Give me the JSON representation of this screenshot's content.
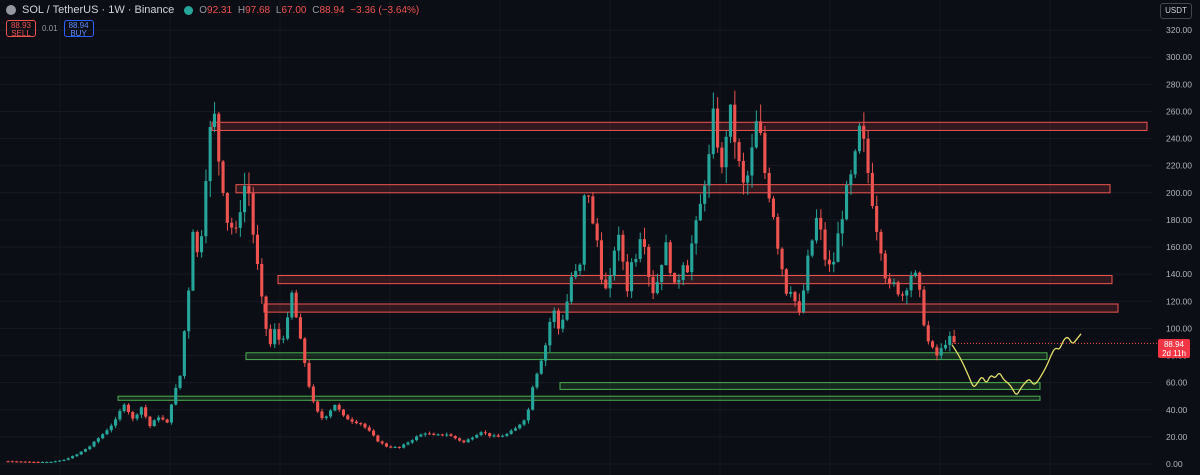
{
  "header": {
    "title": "SOL / TetherUS · 1W · Binance",
    "ohlc": [
      {
        "label": "O",
        "value": "92.31"
      },
      {
        "label": "H",
        "value": "97.68"
      },
      {
        "label": "L",
        "value": "67.00"
      },
      {
        "label": "C",
        "value": "88.94"
      },
      {
        "label": "",
        "value": "−3.36 (−3.64%)"
      }
    ]
  },
  "trade": {
    "sell_price": "88.93",
    "sell_label": "SELL",
    "spread": "0.01",
    "buy_price": "88.94",
    "buy_label": "BUY"
  },
  "currency": "USDT",
  "last_price": {
    "value": "88.94",
    "countdown": "2d 11h"
  },
  "colors": {
    "background": "#0c0e15",
    "up": "#26a69a",
    "down": "#ef5350",
    "resistance": "#ef5350",
    "support": "#4caf50",
    "projection": "#e6e06a"
  },
  "chart_data": {
    "type": "candlestick",
    "ylim": [
      0,
      330
    ],
    "y_ticks": [
      "0.00",
      "20.00",
      "40.00",
      "60.00",
      "80.00",
      "100.00",
      "120.00",
      "140.00",
      "160.00",
      "180.00",
      "200.00",
      "220.00",
      "240.00",
      "260.00",
      "280.00",
      "300.00",
      "320.00"
    ],
    "price_path": [
      [
        0,
        2
      ],
      [
        6,
        1.5
      ],
      [
        10,
        1.5
      ],
      [
        13,
        3
      ],
      [
        16,
        7
      ],
      [
        19,
        13
      ],
      [
        22,
        22
      ],
      [
        25,
        32
      ],
      [
        27,
        45
      ],
      [
        29,
        33
      ],
      [
        31,
        42
      ],
      [
        33,
        28
      ],
      [
        35,
        35
      ],
      [
        37,
        30
      ],
      [
        38,
        45
      ],
      [
        40,
        65
      ],
      [
        41,
        98
      ],
      [
        42,
        130
      ],
      [
        43,
        175
      ],
      [
        44,
        155
      ],
      [
        45,
        172
      ],
      [
        46,
        215
      ],
      [
        47,
        245
      ],
      [
        48,
        255
      ],
      [
        49,
        225
      ],
      [
        50,
        205
      ],
      [
        51,
        180
      ],
      [
        52,
        175
      ],
      [
        53,
        170
      ],
      [
        54,
        190
      ],
      [
        55,
        205
      ],
      [
        56,
        200
      ],
      [
        57,
        170
      ],
      [
        58,
        145
      ],
      [
        59,
        120
      ],
      [
        60,
        100
      ],
      [
        61,
        88
      ],
      [
        62,
        98
      ],
      [
        63,
        92
      ],
      [
        64,
        95
      ],
      [
        65,
        105
      ],
      [
        66,
        125
      ],
      [
        67,
        108
      ],
      [
        68,
        90
      ],
      [
        69,
        75
      ],
      [
        70,
        58
      ],
      [
        71,
        45
      ],
      [
        72,
        38
      ],
      [
        73,
        34
      ],
      [
        74,
        36
      ],
      [
        75,
        40
      ],
      [
        76,
        44
      ],
      [
        78,
        35
      ],
      [
        80,
        32
      ],
      [
        82,
        30
      ],
      [
        84,
        24
      ],
      [
        86,
        17
      ],
      [
        88,
        13
      ],
      [
        91,
        12
      ],
      [
        93,
        16
      ],
      [
        95,
        20
      ],
      [
        97,
        23
      ],
      [
        99,
        21
      ],
      [
        102,
        22
      ],
      [
        104,
        19
      ],
      [
        106,
        16
      ],
      [
        108,
        20
      ],
      [
        110,
        24
      ],
      [
        112,
        21
      ],
      [
        114,
        20
      ],
      [
        116,
        22
      ],
      [
        118,
        26
      ],
      [
        120,
        33
      ],
      [
        121,
        40
      ],
      [
        122,
        58
      ],
      [
        123,
        68
      ],
      [
        124,
        78
      ],
      [
        125,
        88
      ],
      [
        126,
        105
      ],
      [
        127,
        112
      ],
      [
        128,
        100
      ],
      [
        129,
        108
      ],
      [
        130,
        120
      ],
      [
        131,
        138
      ],
      [
        132,
        140
      ],
      [
        133,
        145
      ],
      [
        134,
        195
      ],
      [
        135,
        200
      ],
      [
        136,
        175
      ],
      [
        137,
        165
      ],
      [
        138,
        140
      ],
      [
        139,
        128
      ],
      [
        140,
        135
      ],
      [
        141,
        160
      ],
      [
        142,
        165
      ],
      [
        143,
        150
      ],
      [
        144,
        130
      ],
      [
        145,
        148
      ],
      [
        146,
        155
      ],
      [
        147,
        170
      ],
      [
        148,
        165
      ],
      [
        149,
        140
      ],
      [
        150,
        128
      ],
      [
        151,
        135
      ],
      [
        152,
        150
      ],
      [
        153,
        160
      ],
      [
        154,
        145
      ],
      [
        155,
        130
      ],
      [
        156,
        138
      ],
      [
        157,
        150
      ],
      [
        158,
        145
      ],
      [
        159,
        162
      ],
      [
        160,
        175
      ],
      [
        161,
        190
      ],
      [
        162,
        210
      ],
      [
        163,
        225
      ],
      [
        164,
        255
      ],
      [
        165,
        238
      ],
      [
        166,
        215
      ],
      [
        167,
        245
      ],
      [
        168,
        258
      ],
      [
        169,
        240
      ],
      [
        170,
        220
      ],
      [
        171,
        205
      ],
      [
        172,
        212
      ],
      [
        173,
        230
      ],
      [
        174,
        250
      ],
      [
        175,
        240
      ],
      [
        176,
        215
      ],
      [
        177,
        200
      ],
      [
        178,
        185
      ],
      [
        179,
        162
      ],
      [
        180,
        145
      ],
      [
        181,
        128
      ],
      [
        182,
        130
      ],
      [
        183,
        120
      ],
      [
        184,
        110
      ],
      [
        185,
        128
      ],
      [
        186,
        150
      ],
      [
        187,
        165
      ],
      [
        188,
        180
      ],
      [
        189,
        170
      ],
      [
        190,
        152
      ],
      [
        191,
        145
      ],
      [
        192,
        150
      ],
      [
        193,
        168
      ],
      [
        194,
        185
      ],
      [
        195,
        200
      ],
      [
        196,
        210
      ],
      [
        197,
        225
      ],
      [
        198,
        245
      ],
      [
        199,
        235
      ],
      [
        200,
        215
      ],
      [
        201,
        195
      ],
      [
        202,
        175
      ],
      [
        203,
        160
      ],
      [
        204,
        140
      ],
      [
        205,
        130
      ],
      [
        206,
        132
      ],
      [
        207,
        128
      ],
      [
        208,
        125
      ],
      [
        209,
        132
      ],
      [
        210,
        140
      ],
      [
        211,
        138
      ],
      [
        212,
        125
      ],
      [
        213,
        105
      ],
      [
        214,
        90
      ],
      [
        215,
        84
      ],
      [
        216,
        80
      ],
      [
        217,
        84
      ],
      [
        218,
        90
      ],
      [
        219,
        92
      ],
      [
        220,
        88.94
      ]
    ],
    "resistance_zones": [
      [
        246,
        252
      ],
      [
        200,
        206
      ],
      [
        133,
        139
      ],
      [
        112,
        118
      ]
    ],
    "support_zones": [
      [
        77,
        82
      ],
      [
        55,
        60
      ],
      [
        47,
        50
      ]
    ],
    "projection": [
      [
        220,
        88
      ],
      [
        222,
        78
      ],
      [
        224,
        64
      ],
      [
        225,
        56
      ],
      [
        226,
        60
      ],
      [
        227,
        65
      ],
      [
        228,
        59
      ],
      [
        229,
        66
      ],
      [
        230,
        63
      ],
      [
        231,
        68
      ],
      [
        232,
        62
      ],
      [
        233,
        60
      ],
      [
        234,
        56
      ],
      [
        235,
        50
      ],
      [
        236,
        56
      ],
      [
        237,
        60
      ],
      [
        238,
        63
      ],
      [
        239,
        58
      ],
      [
        240,
        61
      ],
      [
        242,
        72
      ],
      [
        243,
        80
      ],
      [
        244,
        86
      ],
      [
        245,
        84
      ],
      [
        246,
        92
      ],
      [
        247,
        94
      ],
      [
        248,
        88
      ],
      [
        249,
        92
      ],
      [
        250,
        96
      ]
    ]
  }
}
